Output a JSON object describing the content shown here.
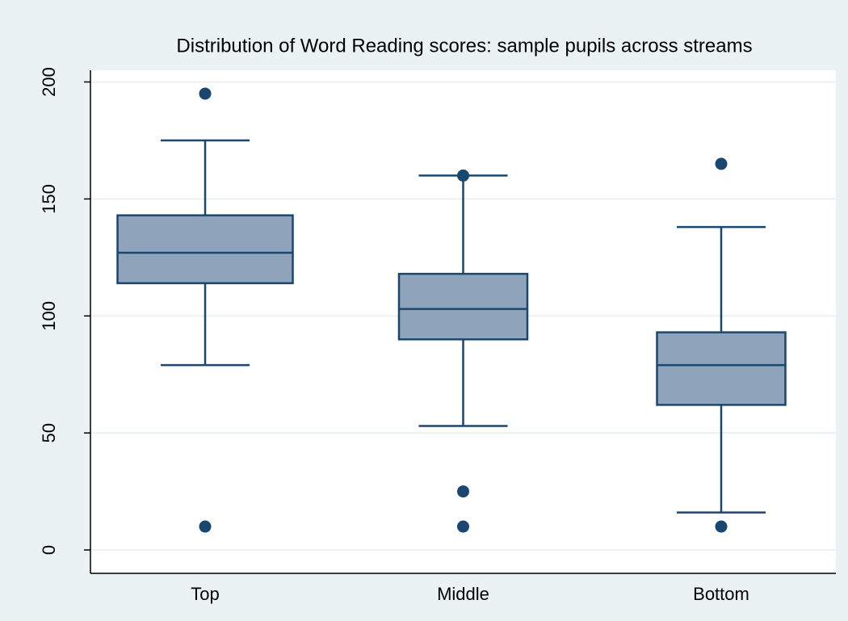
{
  "chart_data": {
    "type": "box",
    "title": "Distribution of Word Reading scores: sample pupils across streams",
    "categories": [
      "Top",
      "Middle",
      "Bottom"
    ],
    "boxes": [
      {
        "whisker_low": 79,
        "q1": 114,
        "median": 127,
        "q3": 143,
        "whisker_high": 175,
        "outliers": [
          195,
          10
        ]
      },
      {
        "whisker_low": 53,
        "q1": 90,
        "median": 103,
        "q3": 118,
        "whisker_high": 160,
        "outliers": [
          160,
          25,
          10
        ]
      },
      {
        "whisker_low": 16,
        "q1": 62,
        "median": 79,
        "q3": 93,
        "whisker_high": 138,
        "outliers": [
          165,
          10
        ]
      }
    ],
    "box_color": "#8fa4bb",
    "line_color": "#1a476f",
    "ylim": [
      -10,
      205
    ],
    "yticks": [
      0,
      50,
      100,
      150,
      200
    ],
    "grid": true
  }
}
